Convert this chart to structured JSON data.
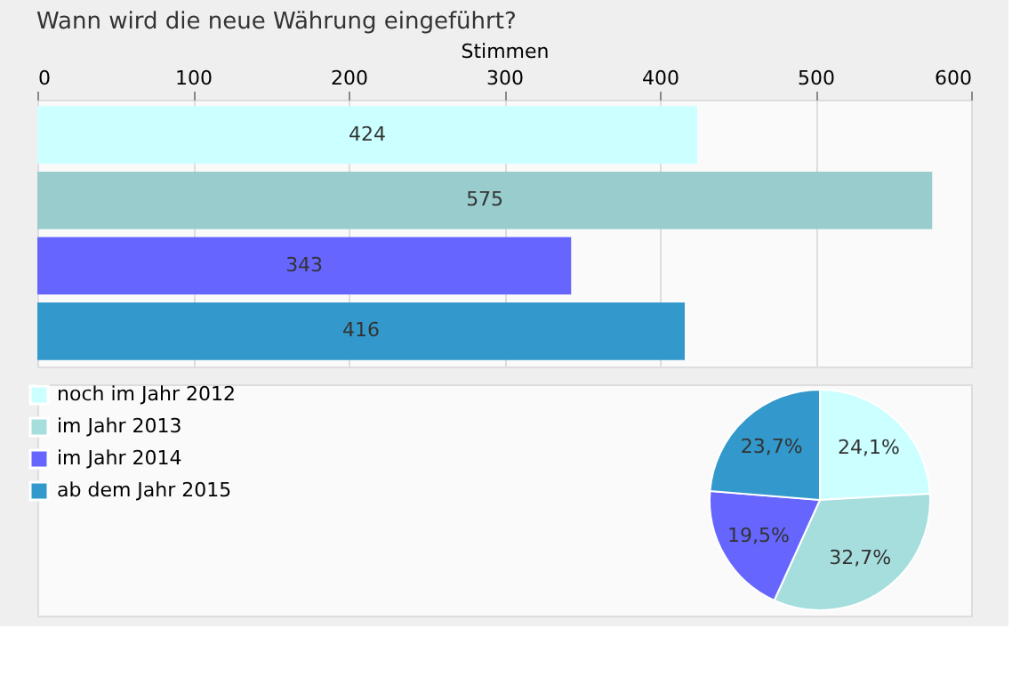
{
  "chart_data": [
    {
      "type": "bar",
      "title": "Wann wird die neue Währung eingeführt?",
      "orientation": "horizontal",
      "xlabel": "Stimmen",
      "categories": [
        null,
        null,
        null,
        null
      ],
      "values": [
        424,
        575,
        343,
        416
      ],
      "colors": [
        "#ccffff",
        "#99cccc",
        "#6666ff",
        "#3399cc"
      ],
      "xlim": [
        0,
        600
      ],
      "xticks": [
        0,
        100,
        200,
        300,
        400,
        500,
        600
      ],
      "grid": "x",
      "data_labels": true,
      "tick_labels": "x"
    },
    {
      "type": "pie",
      "categories": [
        "noch im Jahr 2012",
        "im Jahr 2013",
        "im Jahr 2014",
        "ab dem Jahr 2015"
      ],
      "values": [
        24.1,
        32.7,
        19.5,
        23.7
      ],
      "value_labels": [
        "24,1%",
        "32,7%",
        "19,5%",
        "23,7%"
      ],
      "colors": [
        "#ccffff",
        "#a6dede",
        "#6666ff",
        "#3399cc"
      ],
      "legend": "left"
    }
  ]
}
